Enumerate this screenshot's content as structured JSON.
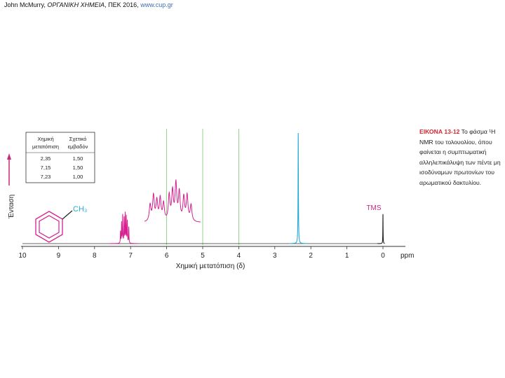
{
  "header": {
    "author": "John McMurry,",
    "book": "ΟΡΓΑΝΙΚΗ ΧΗΜΕΙΑ",
    "publisher": ", ΠΕΚ 2016,",
    "url": "www.cup.gr"
  },
  "caption": {
    "figure_number": "ΕΙΚΟΝΑ 13-12",
    "text": "Το φάσμα ¹H NMR του τολουολίου, όπου φαίνεται η συμπτωματική αλληλεπικάλυψη των πέντε μη ισοδύναμων πρωτονίων του αρωματικού δακτυλίου."
  },
  "table": {
    "headers": [
      [
        "Χημική",
        "μετατόπιση"
      ],
      [
        "Σχετικό",
        "εμβαδόν"
      ]
    ],
    "rows": [
      [
        "2,35",
        "1,50"
      ],
      [
        "7,15",
        "1,50"
      ],
      [
        "7,23",
        "1,00"
      ]
    ]
  },
  "molecule": {
    "group_label": "CH₃"
  },
  "tms_label": "TMS",
  "colors": {
    "aromatic": "#d6208f",
    "methyl": "#29a9d6",
    "tms": "#222222",
    "grid": "#7cc86e",
    "ylabel": "#c8287c"
  },
  "chart_data": {
    "type": "line",
    "xlabel": "Χημική μετατόπιση (δ)",
    "ylabel": "Ένταση",
    "x_unit": "ppm",
    "xlim": [
      10,
      0
    ],
    "x_ticks": [
      "10",
      "9",
      "8",
      "7",
      "6",
      "5",
      "4",
      "3",
      "2",
      "1",
      "0"
    ],
    "gridlines_x": [
      6,
      5,
      4
    ],
    "peaks": [
      {
        "name": "aromatic",
        "shift": 7.2,
        "color": "#d6208f"
      },
      {
        "name": "methyl",
        "shift": 2.35,
        "color": "#29a9d6"
      },
      {
        "name": "TMS",
        "shift": 0.0,
        "color": "#222222"
      }
    ]
  }
}
